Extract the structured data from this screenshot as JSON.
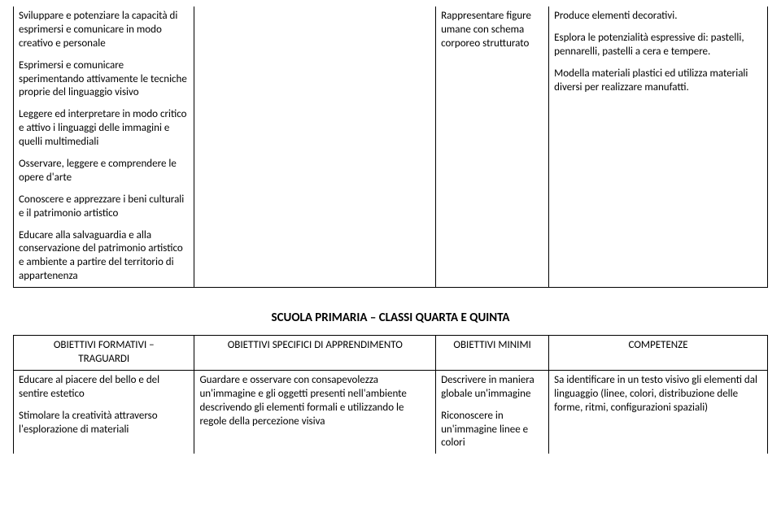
{
  "topTable": {
    "col1": {
      "p1": "Sviluppare e potenziare la capacità di esprimersi e comunicare in modo creativo e personale",
      "p2": "Esprimersi e comunicare sperimentando attivamente le tecniche proprie del linguaggio visivo",
      "p3": "Leggere ed interpretare in modo critico e attivo i linguaggi delle immagini e quelli multimediali",
      "p4": "Osservare, leggere e comprendere le opere d'arte",
      "p5": "Conoscere e apprezzare i beni culturali e il patrimonio artistico",
      "p6": "Educare alla salvaguardia e alla conservazione del patrimonio artistico e ambiente a partire del territorio di appartenenza"
    },
    "col3": {
      "p1": "Rappresentare figure umane con schema corporeo strutturato"
    },
    "col4": {
      "p1": "Produce elementi decorativi.",
      "p2": "Esplora le potenzialità espressive di: pastelli, pennarelli, pastelli a cera e tempere.",
      "p3": "Modella materiali plastici ed utilizza materiali diversi per realizzare manufatti."
    }
  },
  "sectionTitle": "SCUOLA PRIMARIA – CLASSI QUARTA E QUINTA",
  "bottomTable": {
    "headers": {
      "h1a": "OBIETTIVI FORMATIVI –",
      "h1b": "TRAGUARDI",
      "h2": "OBIETTIVI SPECIFICI DI APPRENDIMENTO",
      "h3": "OBIETTIVI MINIMI",
      "h4": "COMPETENZE"
    },
    "row1": {
      "c1p1": "Educare al piacere del bello e del sentire estetico",
      "c1p2": "Stimolare la creatività attraverso l'esplorazione di materiali",
      "c2p1": "Guardare e osservare con consapevolezza un'immagine e gli oggetti presenti nell'ambiente descrivendo gli elementi formali e utilizzando le regole della percezione visiva",
      "c3p1": "Descrivere in maniera globale un'immagine",
      "c3p2": "Riconoscere in un'immagine linee e colori",
      "c4p1": "Sa identificare in un testo visivo gli elementi dal linguaggio (linee, colori, distribuzione delle forme, ritmi, configurazioni spaziali)"
    }
  }
}
